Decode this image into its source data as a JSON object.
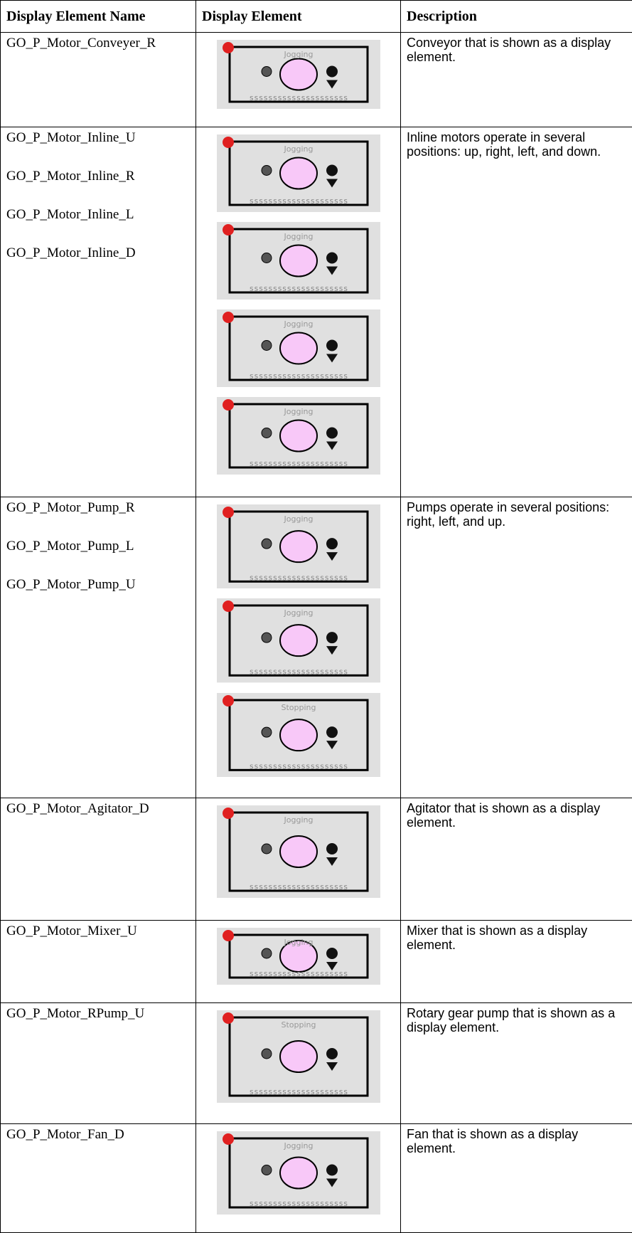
{
  "table": {
    "headers": [
      "Display Element Name",
      "Display Element",
      "Description"
    ],
    "rows": [
      {
        "names": [
          "GO_P_Motor_Conveyer_R"
        ],
        "elements": [
          {
            "status": "Jogging",
            "tag": "sssssssssssssssssssss"
          }
        ],
        "description": "Conveyor that is shown as a display element."
      },
      {
        "names": [
          "GO_P_Motor_Inline_U",
          "GO_P_Motor_Inline_R",
          "GO_P_Motor_Inline_L",
          "GO_P_Motor_Inline_D"
        ],
        "elements": [
          {
            "status": "Jogging",
            "tag": "sssssssssssssssssssss"
          },
          {
            "status": "Jogging",
            "tag": "sssssssssssssssssssss"
          },
          {
            "status": "Jogging",
            "tag": "sssssssssssssssssssss"
          },
          {
            "status": "Jogging",
            "tag": "sssssssssssssssssssss"
          }
        ],
        "description": "Inline motors operate in several positions: up, right, left, and down."
      },
      {
        "names": [
          "GO_P_Motor_Pump_R",
          "GO_P_Motor_Pump_L",
          "GO_P_Motor_Pump_U"
        ],
        "elements": [
          {
            "status": "Jogging",
            "tag": "sssssssssssssssssssss"
          },
          {
            "status": "Jogging",
            "tag": "sssssssssssssssssssss"
          },
          {
            "status": "Stopping",
            "tag": "sssssssssssssssssssss"
          }
        ],
        "description": "Pumps operate in several positions: right, left, and up."
      },
      {
        "names": [
          "GO_P_Motor_Agitator_D"
        ],
        "elements": [
          {
            "status": "Jogging",
            "tag": "sssssssssssssssssssss"
          }
        ],
        "description": "Agitator that is shown as a display element."
      },
      {
        "names": [
          "GO_P_Motor_Mixer_U"
        ],
        "elements": [
          {
            "status": "Jogging",
            "tag": "sssssssssssssssssssss"
          }
        ],
        "description": "Mixer that is shown as a display element."
      },
      {
        "names": [
          "GO_P_Motor_RPump_U"
        ],
        "elements": [
          {
            "status": "Stopping",
            "tag": "sssssssssssssssssssss"
          }
        ],
        "description": "Rotary gear pump that is shown as a display element."
      },
      {
        "names": [
          "GO_P_Motor_Fan_D"
        ],
        "elements": [
          {
            "status": "Jogging",
            "tag": "sssssssssssssssssssss"
          }
        ],
        "description": "Fan that is shown as a display element."
      }
    ]
  }
}
